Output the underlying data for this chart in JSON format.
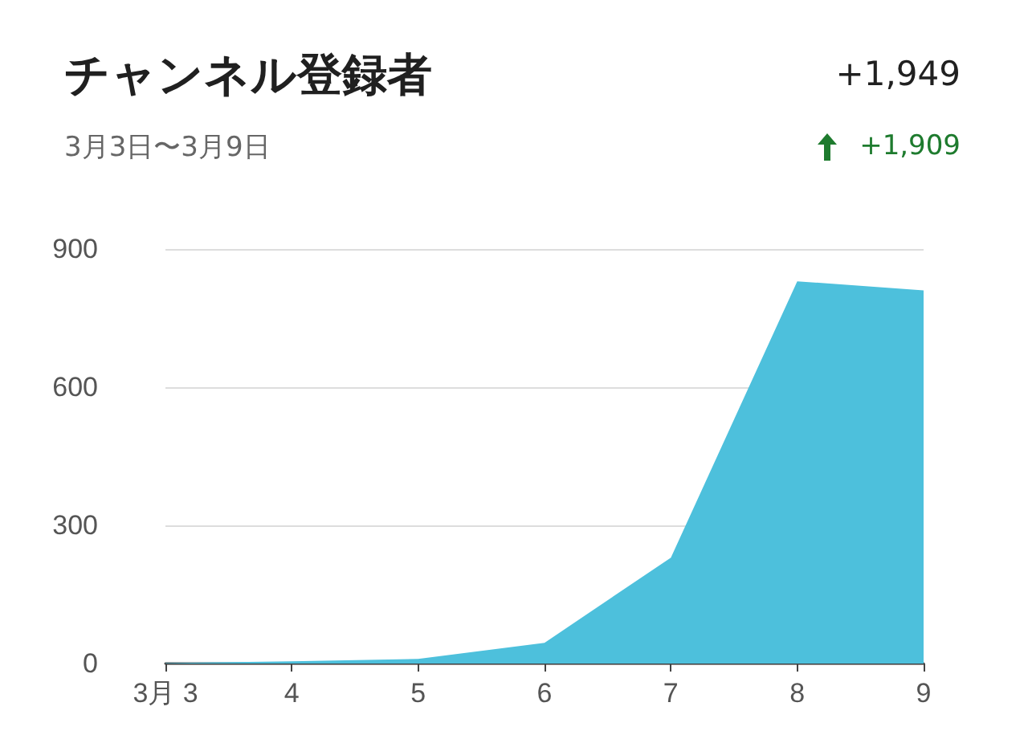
{
  "chart_data": {
    "type": "area",
    "title": "チャンネル登録者",
    "subtitle": "3月3日〜3月9日",
    "annotations": [
      "+1,949",
      "+1,909"
    ],
    "categories": [
      "3月 3",
      "4",
      "5",
      "6",
      "7",
      "8",
      "9"
    ],
    "series": [
      {
        "color": "#4dc0dc",
        "values": [
          1,
          5,
          10,
          45,
          230,
          830,
          810
        ]
      }
    ],
    "ylim": [
      0,
      900
    ],
    "yticks": [
      0,
      300,
      600,
      900
    ],
    "grid": "y"
  }
}
